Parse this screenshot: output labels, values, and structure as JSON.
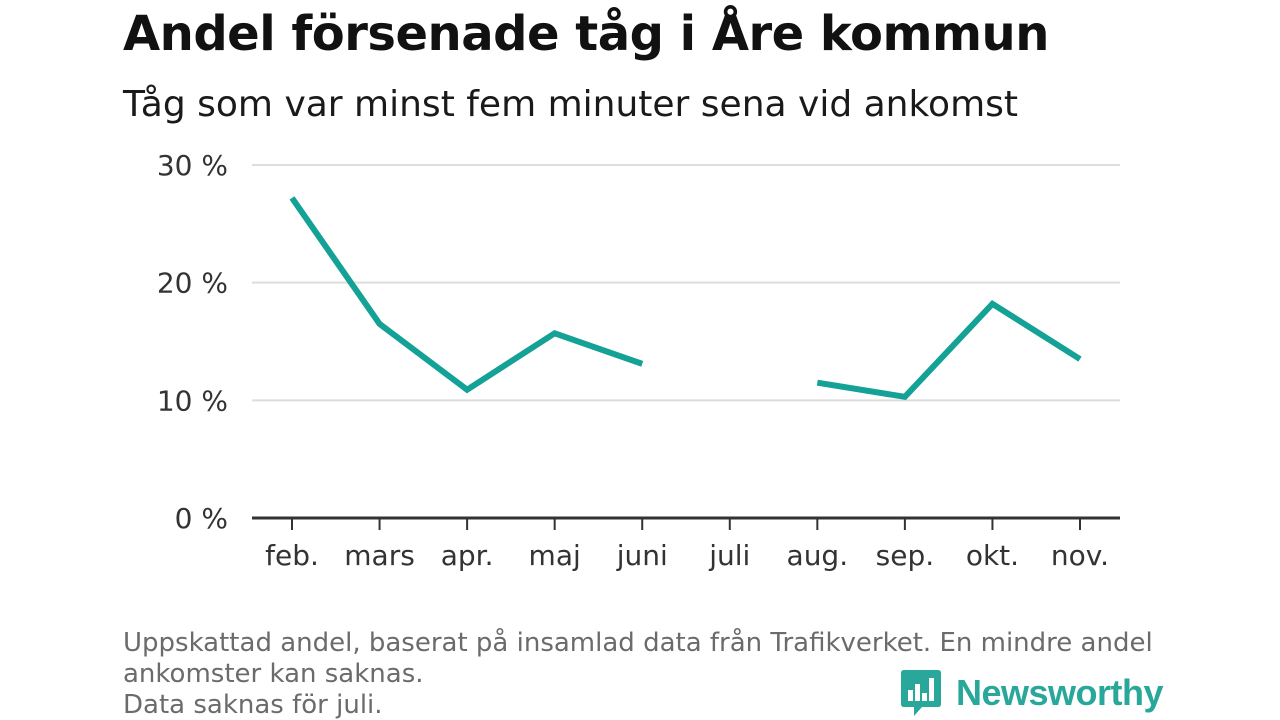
{
  "header": {
    "title": "Andel försenade tåg i Åre kommun",
    "subtitle": "Tåg som var minst fem minuter sena vid ankomst"
  },
  "chart_data": {
    "type": "line",
    "title": "Andel försenade tåg i Åre kommun",
    "subtitle": "Tåg som var minst fem minuter sena vid ankomst",
    "xlabel": "",
    "ylabel": "",
    "categories": [
      "feb.",
      "mars",
      "apr.",
      "maj",
      "juni",
      "juli",
      "aug.",
      "sep.",
      "okt.",
      "nov."
    ],
    "series": [
      {
        "values": [
          27.2,
          16.5,
          10.9,
          15.7,
          13.1,
          null,
          11.5,
          10.3,
          18.2,
          13.5
        ]
      }
    ],
    "ylim": [
      0,
      30
    ],
    "yticks": [
      0,
      10,
      20,
      30
    ],
    "ytick_labels": [
      "0 %",
      "10 %",
      "20 %",
      "30 %"
    ],
    "grid": true,
    "colors": {
      "line": "#14a196",
      "grid": "#dddddd",
      "axis": "#333333"
    }
  },
  "footer": {
    "note_line1": "Uppskattad andel, baserat på insamlad data från Trafikverket. En mindre andel",
    "note_line2": "ankomster kan saknas.",
    "note_line3": "Data saknas för juli.",
    "logo_text": "Newsworthy",
    "logo_icon": "newsworthy-bar-chart-icon",
    "brand_color": "#2aa79b"
  }
}
